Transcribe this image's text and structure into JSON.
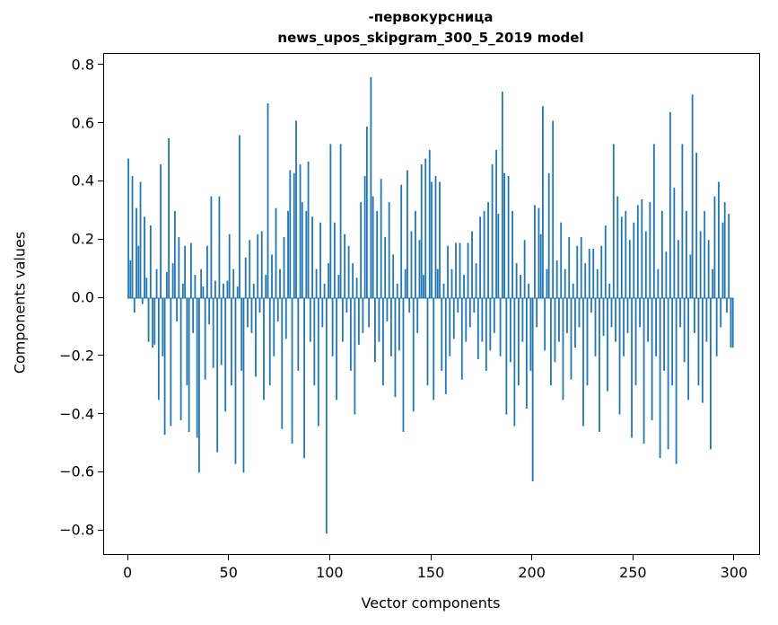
{
  "figure": {
    "title_line1": "-первокурсница",
    "title_line2": "news_upos_skipgram_300_5_2019 model",
    "xlabel": "Vector components",
    "ylabel": "Components values"
  },
  "chart_data": {
    "type": "bar",
    "title": "-первокурсница",
    "subtitle": "news_upos_skipgram_300_5_2019 model",
    "xlabel": "Vector components",
    "ylabel": "Components values",
    "bar_color": "#1f77b4",
    "grid": false,
    "legend": "none",
    "xlim": [
      -12,
      312
    ],
    "ylim": [
      -0.88,
      0.84
    ],
    "x_tick_values": [
      0,
      50,
      100,
      150,
      200,
      250,
      300
    ],
    "x_tick_labels": [
      "0",
      "50",
      "100",
      "150",
      "200",
      "250",
      "300"
    ],
    "y_tick_values": [
      0.8,
      0.6,
      0.4,
      0.2,
      0.0,
      -0.2,
      -0.4,
      -0.6,
      -0.8
    ],
    "y_tick_labels": [
      "0.8",
      "0.6",
      "0.4",
      "0.2",
      "0.0",
      "−0.2",
      "−0.4",
      "−0.6",
      "−0.8"
    ],
    "values": [
      0.48,
      0.13,
      0.42,
      -0.05,
      0.31,
      0.18,
      0.4,
      -0.02,
      0.28,
      0.07,
      -0.15,
      0.25,
      -0.17,
      -0.16,
      0.1,
      -0.35,
      0.46,
      -0.2,
      -0.47,
      0.09,
      0.55,
      -0.44,
      0.12,
      0.3,
      -0.08,
      0.21,
      -0.42,
      0.05,
      0.18,
      -0.3,
      -0.46,
      0.19,
      -0.12,
      0.08,
      -0.48,
      -0.6,
      0.1,
      0.04,
      -0.28,
      0.18,
      -0.09,
      0.35,
      -0.24,
      0.06,
      -0.53,
      0.35,
      -0.23,
      0.05,
      -0.39,
      0.06,
      0.22,
      -0.3,
      0.1,
      -0.57,
      0.04,
      0.56,
      -0.25,
      -0.6,
      0.14,
      -0.1,
      0.2,
      -0.12,
      0.05,
      -0.27,
      0.22,
      -0.05,
      0.23,
      -0.35,
      0.08,
      0.67,
      -0.3,
      0.15,
      -0.2,
      0.31,
      -0.08,
      0.1,
      -0.45,
      0.21,
      -0.14,
      0.3,
      0.44,
      -0.5,
      0.43,
      0.61,
      -0.25,
      0.46,
      0.33,
      -0.55,
      0.3,
      0.47,
      -0.15,
      0.28,
      -0.3,
      0.1,
      -0.44,
      0.26,
      -0.1,
      0.05,
      -0.81,
      0.12,
      0.53,
      -0.2,
      0.26,
      -0.35,
      0.08,
      0.53,
      -0.15,
      0.22,
      -0.05,
      0.18,
      -0.25,
      0.12,
      -0.4,
      0.07,
      -0.16,
      0.33,
      -0.12,
      0.42,
      0.59,
      -0.1,
      0.76,
      0.35,
      -0.22,
      0.3,
      -0.15,
      0.41,
      -0.3,
      0.21,
      -0.08,
      0.33,
      -0.2,
      0.15,
      -0.34,
      0.05,
      -0.18,
      0.39,
      -0.46,
      0.1,
      0.44,
      -0.05,
      0.23,
      -0.39,
      0.3,
      -0.12,
      0.2,
      0.46,
      0.08,
      0.48,
      -0.3,
      0.51,
      0.4,
      -0.35,
      0.42,
      0.1,
      0.4,
      -0.25,
      0.05,
      -0.33,
      0.18,
      -0.2,
      0.1,
      -0.14,
      0.19,
      -0.05,
      0.19,
      -0.28,
      0.08,
      -0.15,
      0.19,
      -0.1,
      0.23,
      -0.05,
      0.12,
      -0.21,
      0.28,
      -0.15,
      0.3,
      -0.25,
      0.33,
      -0.18,
      0.46,
      -0.12,
      0.51,
      0.29,
      -0.2,
      0.71,
      0.43,
      -0.4,
      0.42,
      -0.22,
      0.3,
      -0.44,
      0.12,
      -0.3,
      0.08,
      -0.15,
      0.2,
      -0.38,
      0.05,
      -0.25,
      -0.63,
      0.32,
      -0.1,
      0.31,
      0.22,
      0.66,
      -0.18,
      0.1,
      0.43,
      -0.3,
      0.61,
      -0.22,
      0.13,
      -0.15,
      0.26,
      -0.35,
      0.1,
      -0.12,
      0.21,
      -0.28,
      0.05,
      -0.17,
      0.18,
      -0.1,
      0.21,
      -0.44,
      0.12,
      -0.3,
      0.17,
      -0.05,
      0.17,
      -0.2,
      0.1,
      -0.46,
      0.18,
      -0.13,
      0.25,
      -0.32,
      0.05,
      -0.1,
      0.53,
      -0.15,
      0.35,
      -0.4,
      0.28,
      -0.2,
      0.3,
      -0.12,
      0.2,
      -0.48,
      0.26,
      -0.3,
      0.32,
      -0.1,
      0.34,
      -0.5,
      0.23,
      -0.15,
      0.33,
      -0.42,
      0.53,
      -0.2,
      0.1,
      -0.55,
      0.3,
      -0.25,
      0.16,
      -0.52,
      0.64,
      -0.3,
      0.38,
      -0.57,
      0.2,
      -0.1,
      0.53,
      -0.22,
      0.3,
      -0.35,
      0.15,
      0.7,
      -0.12,
      0.5,
      -0.3,
      0.23,
      -0.36,
      0.3,
      -0.15,
      0.2,
      -0.52,
      0.1,
      0.35,
      -0.2,
      0.4,
      -0.1,
      0.26,
      0.33,
      -0.05,
      0.29,
      -0.17,
      -0.17
    ]
  }
}
